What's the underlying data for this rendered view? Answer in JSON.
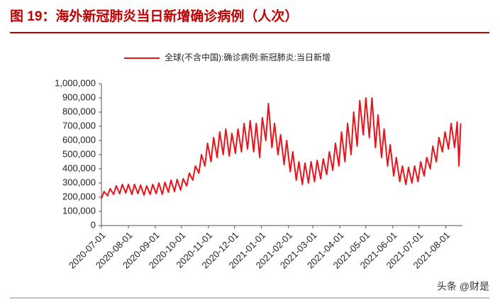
{
  "title": "图 19：海外新冠肺炎当日新增确诊病例（人次）",
  "watermark": "头条 @财是",
  "chart_data": {
    "type": "line",
    "x": [
      "2020-07-01",
      "2020-07-04",
      "2020-07-08",
      "2020-07-11",
      "2020-07-15",
      "2020-07-18",
      "2020-07-22",
      "2020-07-25",
      "2020-07-29",
      "2020-08-01",
      "2020-08-05",
      "2020-08-08",
      "2020-08-12",
      "2020-08-15",
      "2020-08-19",
      "2020-08-22",
      "2020-08-26",
      "2020-08-29",
      "2020-09-02",
      "2020-09-05",
      "2020-09-09",
      "2020-09-12",
      "2020-09-16",
      "2020-09-19",
      "2020-09-23",
      "2020-09-26",
      "2020-09-30",
      "2020-10-03",
      "2020-10-07",
      "2020-10-10",
      "2020-10-14",
      "2020-10-17",
      "2020-10-21",
      "2020-10-24",
      "2020-10-28",
      "2020-10-31",
      "2020-11-04",
      "2020-11-07",
      "2020-11-11",
      "2020-11-14",
      "2020-11-18",
      "2020-11-21",
      "2020-11-25",
      "2020-11-28",
      "2020-12-02",
      "2020-12-05",
      "2020-12-09",
      "2020-12-12",
      "2020-12-16",
      "2020-12-19",
      "2020-12-23",
      "2020-12-26",
      "2020-12-30",
      "2021-01-02",
      "2021-01-06",
      "2021-01-09",
      "2021-01-13",
      "2021-01-16",
      "2021-01-20",
      "2021-01-23",
      "2021-01-27",
      "2021-01-30",
      "2021-02-03",
      "2021-02-06",
      "2021-02-10",
      "2021-02-13",
      "2021-02-17",
      "2021-02-20",
      "2021-02-24",
      "2021-02-27",
      "2021-03-03",
      "2021-03-06",
      "2021-03-10",
      "2021-03-13",
      "2021-03-17",
      "2021-03-20",
      "2021-03-24",
      "2021-03-27",
      "2021-03-31",
      "2021-04-03",
      "2021-04-07",
      "2021-04-10",
      "2021-04-14",
      "2021-04-17",
      "2021-04-21",
      "2021-04-24",
      "2021-04-28",
      "2021-05-01",
      "2021-05-05",
      "2021-05-08",
      "2021-05-12",
      "2021-05-15",
      "2021-05-19",
      "2021-05-22",
      "2021-05-26",
      "2021-05-29",
      "2021-06-02",
      "2021-06-05",
      "2021-06-09",
      "2021-06-12",
      "2021-06-16",
      "2021-06-19",
      "2021-06-23",
      "2021-06-26",
      "2021-06-30",
      "2021-07-03",
      "2021-07-07",
      "2021-07-10",
      "2021-07-14",
      "2021-07-17",
      "2021-07-21",
      "2021-07-24",
      "2021-07-28",
      "2021-07-31",
      "2021-08-04",
      "2021-08-07",
      "2021-08-11",
      "2021-08-14",
      "2021-08-16",
      "2021-08-18"
    ],
    "series": [
      {
        "name": "全球(不含中国):确诊病例:新冠肺炎:当日新增",
        "color": "#e8141b",
        "values": [
          190000,
          240000,
          210000,
          260000,
          220000,
          280000,
          225000,
          290000,
          230000,
          290000,
          220000,
          290000,
          225000,
          285000,
          215000,
          280000,
          220000,
          290000,
          225000,
          300000,
          220000,
          305000,
          235000,
          320000,
          240000,
          325000,
          250000,
          330000,
          280000,
          370000,
          320000,
          420000,
          370000,
          500000,
          420000,
          580000,
          450000,
          620000,
          480000,
          660000,
          500000,
          680000,
          490000,
          650000,
          510000,
          680000,
          520000,
          720000,
          540000,
          740000,
          520000,
          720000,
          480000,
          760000,
          600000,
          860000,
          550000,
          720000,
          500000,
          640000,
          430000,
          600000,
          380000,
          520000,
          320000,
          450000,
          290000,
          440000,
          300000,
          450000,
          310000,
          460000,
          330000,
          470000,
          360000,
          520000,
          390000,
          580000,
          420000,
          660000,
          450000,
          720000,
          500000,
          800000,
          560000,
          880000,
          640000,
          900000,
          620000,
          900000,
          550000,
          780000,
          480000,
          680000,
          420000,
          570000,
          350000,
          480000,
          310000,
          420000,
          290000,
          410000,
          300000,
          420000,
          310000,
          450000,
          350000,
          480000,
          400000,
          560000,
          450000,
          620000,
          520000,
          660000,
          540000,
          720000,
          550000,
          730000,
          420000,
          720000
        ]
      }
    ],
    "xlim": [
      "2020-07-01",
      "2021-08-20"
    ],
    "xticks": [
      "2020-07-01",
      "2020-08-01",
      "2020-09-01",
      "2020-10-01",
      "2020-11-01",
      "2020-12-01",
      "2021-01-01",
      "2021-02-01",
      "2021-03-01",
      "2021-04-01",
      "2021-05-01",
      "2021-06-01",
      "2021-07-01",
      "2021-08-01"
    ],
    "ylim": [
      0,
      1000000
    ],
    "yticks": [
      0,
      {
        "value": 100000,
        "label": "100,000"
      },
      {
        "value": 200000,
        "label": "200,000"
      },
      {
        "value": 300000,
        "label": "300,000"
      },
      {
        "value": 400000,
        "label": "400,000"
      },
      {
        "value": 500000,
        "label": "500,000"
      },
      {
        "value": 600000,
        "label": "600,000"
      },
      {
        "value": 700000,
        "label": "700,000"
      },
      {
        "value": 800000,
        "label": "800,000"
      },
      {
        "value": 900000,
        "label": "900,000"
      },
      {
        "value": 1000000,
        "label": "1,000,000"
      }
    ],
    "grid": false,
    "legend": "top"
  }
}
